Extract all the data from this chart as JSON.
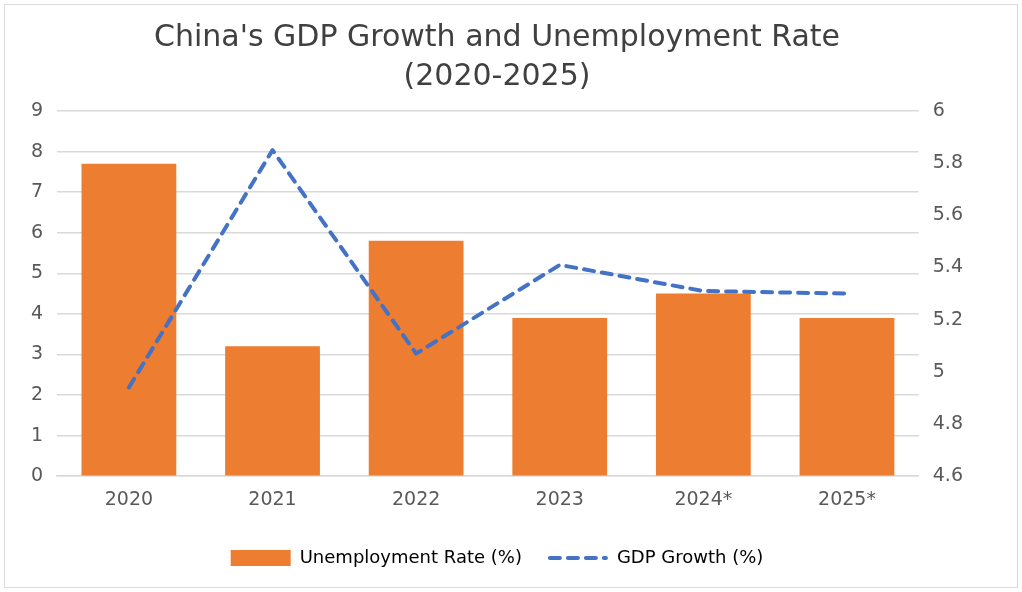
{
  "chart_data": {
    "type": "bar",
    "title": "China's GDP Growth and Unemployment Rate (2020-2025)",
    "categories": [
      "2020",
      "2021",
      "2022",
      "2023",
      "2024*",
      "2025*"
    ],
    "series": [
      {
        "name": "Unemployment Rate (%)",
        "color": "#ed7d31",
        "values": [
          7.7,
          3.2,
          5.8,
          3.9,
          4.5,
          3.9
        ]
      },
      {
        "name": "GDP Growth (%)",
        "type": "line",
        "axis": "y2",
        "color": "#4472c4",
        "line_style": "dashed",
        "values": [
          4.94,
          5.85,
          5.07,
          5.41,
          5.31,
          5.3
        ]
      }
    ],
    "ylim": [
      0,
      9
    ],
    "yticks": [
      0,
      1,
      2,
      3,
      4,
      5,
      6,
      7,
      8,
      9
    ],
    "y2lim": [
      4.6,
      6
    ],
    "y2ticks": [
      4.6,
      4.8,
      5,
      5.2,
      5.4,
      5.6,
      5.8,
      6
    ],
    "grid": "y",
    "legend": "bottom",
    "marker": "none"
  }
}
